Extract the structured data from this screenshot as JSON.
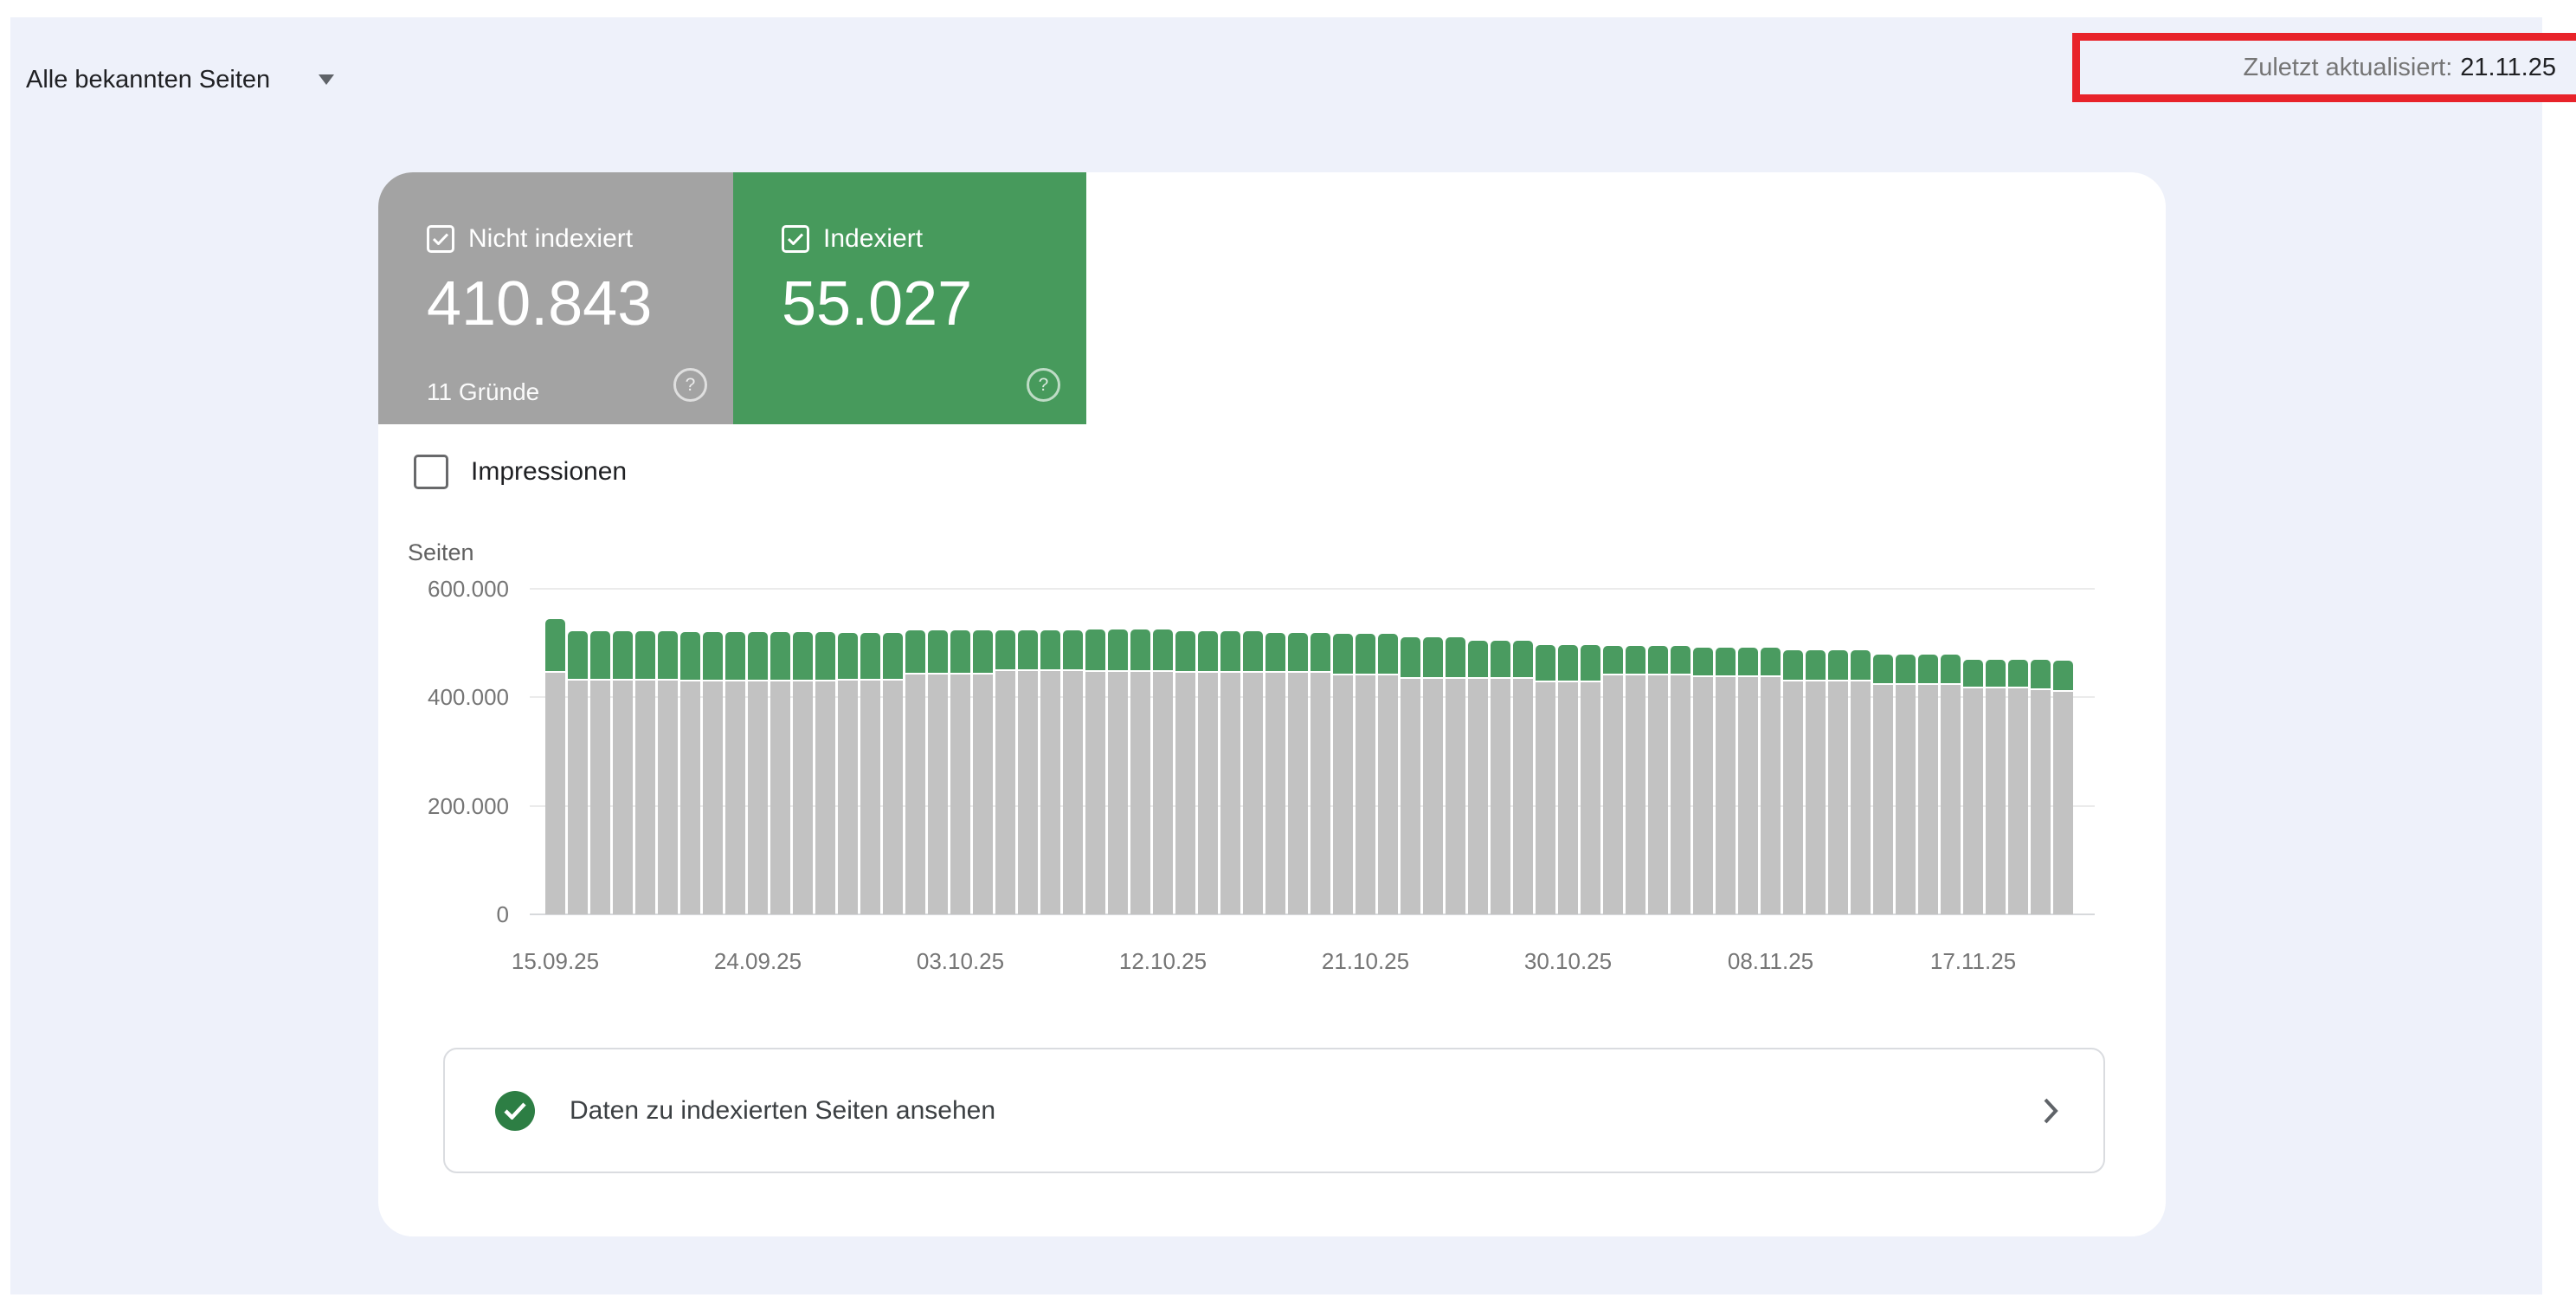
{
  "page": {
    "background": "#ffffff",
    "panel_background": "#eef1fa"
  },
  "toolbar": {
    "filter_label": "Alle bekannten Seiten",
    "last_updated_label": "Zuletzt aktualisiert:",
    "last_updated_value": "21.11.25",
    "annotation_color": "#e8232a"
  },
  "summary_cards": [
    {
      "label": "Nicht indexiert",
      "value": "410.843",
      "sub": "11 Gründe",
      "color": "#a3a3a3",
      "checked": true
    },
    {
      "label": "Indexiert",
      "value": "55.027",
      "sub": "",
      "color": "#479a5c",
      "checked": true
    }
  ],
  "impressions_toggle": {
    "label": "Impressionen",
    "checked": false
  },
  "chart_data": {
    "type": "bar",
    "stacked": true,
    "ylabel": "Seiten",
    "y_max": 600000,
    "y_tick_values": [
      600000,
      400000,
      200000,
      0
    ],
    "y_tick_labels": [
      "600.000",
      "400.000",
      "200.000",
      "0"
    ],
    "grid": true,
    "x_tick_labels": [
      "15.09.25",
      "24.09.25",
      "03.10.25",
      "12.10.25",
      "21.10.25",
      "30.10.25",
      "08.11.25",
      "17.11.25"
    ],
    "x_tick_indices": [
      0,
      9,
      18,
      27,
      36,
      45,
      54,
      63
    ],
    "x_range": [
      "15.09.25",
      "21.11.25"
    ],
    "bar_count": 68,
    "series": [
      {
        "name": "Nicht indexiert",
        "color": "#c2c2c2",
        "values": [
          445000,
          431000,
          431000,
          431000,
          431000,
          431000,
          430000,
          430000,
          430000,
          429500,
          429500,
          429500,
          429500,
          431500,
          431500,
          431500,
          441500,
          441500,
          441500,
          441500,
          448000,
          448000,
          448000,
          448000,
          447000,
          447000,
          447000,
          447000,
          446000,
          446000,
          446000,
          446000,
          444500,
          444500,
          444500,
          440000,
          440000,
          440000,
          434500,
          434500,
          434500,
          433500,
          433500,
          433500,
          428000,
          428000,
          428000,
          440000,
          440000,
          440000,
          440000,
          436500,
          436500,
          436500,
          436500,
          430000,
          430000,
          430000,
          430000,
          423500,
          423500,
          423500,
          423500,
          416500,
          416500,
          416500,
          413000,
          410843
        ]
      },
      {
        "name": "Indexiert",
        "color": "#4a9b60",
        "values": [
          95000,
          88000,
          88000,
          88000,
          88000,
          88000,
          88500,
          88500,
          88500,
          88000,
          88000,
          88000,
          88000,
          84000,
          84000,
          84000,
          78500,
          78500,
          78500,
          78500,
          72500,
          72500,
          72500,
          72500,
          75500,
          75500,
          75500,
          75500,
          73500,
          73500,
          73500,
          73500,
          71000,
          71000,
          71000,
          73500,
          73500,
          73500,
          73000,
          73000,
          73000,
          67000,
          67000,
          67000,
          66000,
          66000,
          66000,
          50500,
          50500,
          50500,
          50500,
          51500,
          51500,
          51500,
          51500,
          54000,
          54000,
          54000,
          54000,
          52500,
          52500,
          52500,
          52500,
          49500,
          49500,
          49500,
          52000,
          55027
        ]
      }
    ]
  },
  "action_bar": {
    "label": "Daten zu indexierten Seiten ansehen"
  },
  "icons": {
    "dropdown_caret": "dropdown-arrow-icon",
    "card_checkbox": "checkbox-checked-icon",
    "help": "help-icon",
    "impressions_checkbox": "checkbox-unchecked-icon",
    "success": "check-circle-icon",
    "chevron": "chevron-right-icon"
  }
}
